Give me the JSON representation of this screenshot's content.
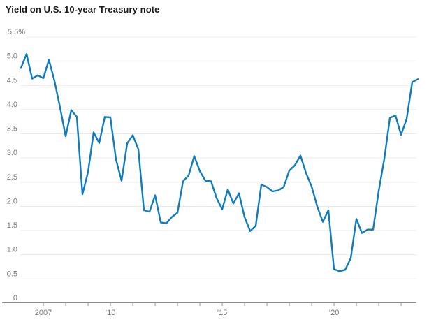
{
  "title": "Yield on U.S. 10-year Treasury note",
  "colors": {
    "line": "#0f7cbd",
    "grid": "#e9e9e9",
    "axis": "#666666",
    "tick": "#999999",
    "axis_label": "#777777",
    "title_text": "#1a1a1a",
    "background": "#ffffff"
  },
  "chart_data": {
    "type": "line",
    "title": "Yield on U.S. 10-year Treasury note",
    "xlabel": "",
    "ylabel": "",
    "unit": "%",
    "frequency": "quarterly",
    "start_period": "2006 Q1",
    "end_period": "2023 Q4",
    "start_year": 2006,
    "ylim": [
      0,
      5.5
    ],
    "grid": "horizontal",
    "legend": "none",
    "y_ticks": [
      0,
      0.5,
      1,
      1.5,
      2,
      2.5,
      3,
      3.5,
      4,
      4.5,
      5,
      5.5
    ],
    "y_top_label": "5.5%",
    "x_tick_years": [
      2007,
      2008,
      2009,
      2010,
      2011,
      2012,
      2013,
      2014,
      2015,
      2016,
      2017,
      2018,
      2019,
      2020,
      2021,
      2022,
      2023
    ],
    "x_year_labels": [
      {
        "year": 2007,
        "label": "2007"
      },
      {
        "year": 2010,
        "label": "’10"
      },
      {
        "year": 2015,
        "label": "’15"
      },
      {
        "year": 2020,
        "label": "’20"
      }
    ],
    "values": [
      4.86,
      5.15,
      4.64,
      4.71,
      4.65,
      5.03,
      4.59,
      4.04,
      3.45,
      3.99,
      3.85,
      2.25,
      2.71,
      3.53,
      3.31,
      3.85,
      3.84,
      2.97,
      2.53,
      3.3,
      3.47,
      3.18,
      1.92,
      1.89,
      2.23,
      1.67,
      1.65,
      1.78,
      1.87,
      2.52,
      2.64,
      3.04,
      2.73,
      2.53,
      2.52,
      2.17,
      1.94,
      2.35,
      2.06,
      2.27,
      1.78,
      1.49,
      1.6,
      2.45,
      2.4,
      2.31,
      2.33,
      2.4,
      2.74,
      2.85,
      3.05,
      2.69,
      2.41,
      2.0,
      1.68,
      1.92,
      0.7,
      0.66,
      0.69,
      0.93,
      1.74,
      1.45,
      1.52,
      1.52,
      2.32,
      2.98,
      3.83,
      3.88,
      3.48,
      3.81,
      4.57,
      4.63
    ]
  }
}
